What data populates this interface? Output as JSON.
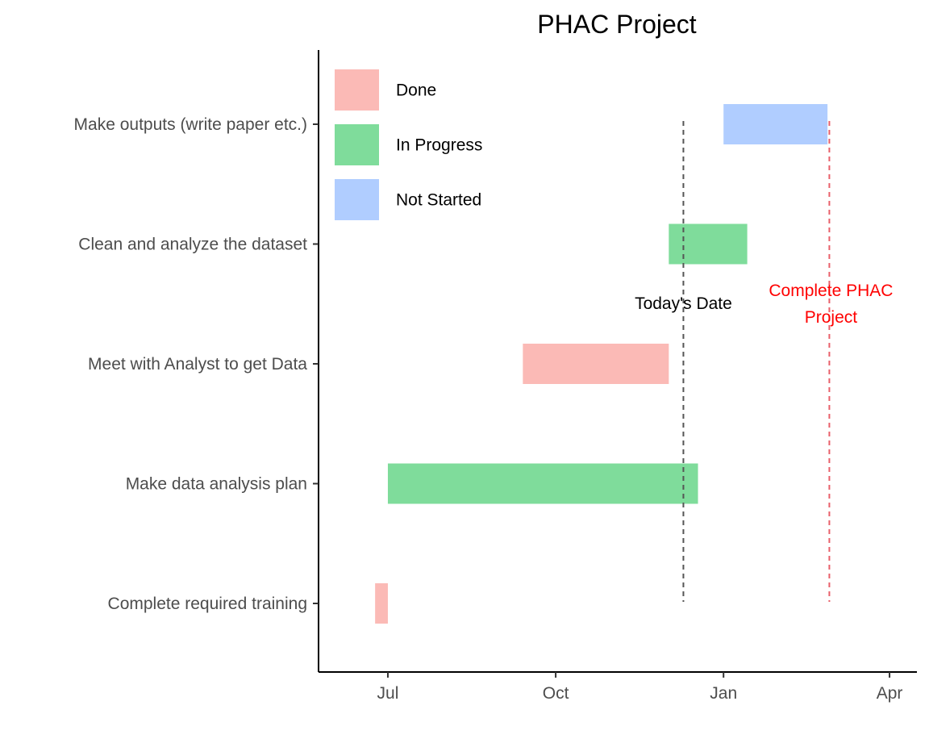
{
  "chart_data": {
    "type": "gantt",
    "title": "PHAC Project",
    "xlabel": "",
    "ylabel": "",
    "x_ticks": [
      {
        "label": "Jul",
        "date": "2023-07-01"
      },
      {
        "label": "Oct",
        "date": "2023-10-01"
      },
      {
        "label": "Jan",
        "date": "2024-01-01"
      },
      {
        "label": "Apr",
        "date": "2024-04-01"
      }
    ],
    "xlim": [
      "2023-05-24",
      "2024-04-16"
    ],
    "tasks": [
      {
        "name": "Make outputs (write paper etc.)",
        "start": "2024-01-01",
        "end": "2024-02-27",
        "status": "Not Started"
      },
      {
        "name": "Clean and analyze the dataset",
        "start": "2023-12-02",
        "end": "2024-01-14",
        "status": "In Progress"
      },
      {
        "name": "Meet with Analyst to get Data",
        "start": "2023-09-13",
        "end": "2023-12-02",
        "status": "Done"
      },
      {
        "name": "Make data analysis plan",
        "start": "2023-07-01",
        "end": "2023-12-18",
        "status": "In Progress"
      },
      {
        "name": "Complete required training",
        "start": "2023-06-24",
        "end": "2023-07-01",
        "status": "Done"
      }
    ],
    "legend": [
      {
        "label": "Done",
        "color": "#f8766d"
      },
      {
        "label": "In Progress",
        "color": "#00ba38"
      },
      {
        "label": "Not Started",
        "color": "#619cff"
      }
    ],
    "legend_position": "top-left",
    "annotations": [
      {
        "label": "Today's Date",
        "date": "2023-12-10",
        "color": "#555555",
        "text_color": "#000000"
      },
      {
        "label_lines": [
          "Complete PHAC",
          "Project"
        ],
        "date": "2024-02-28",
        "color": "#e8606a",
        "text_color": "#ff0000"
      }
    ],
    "grid": false
  }
}
